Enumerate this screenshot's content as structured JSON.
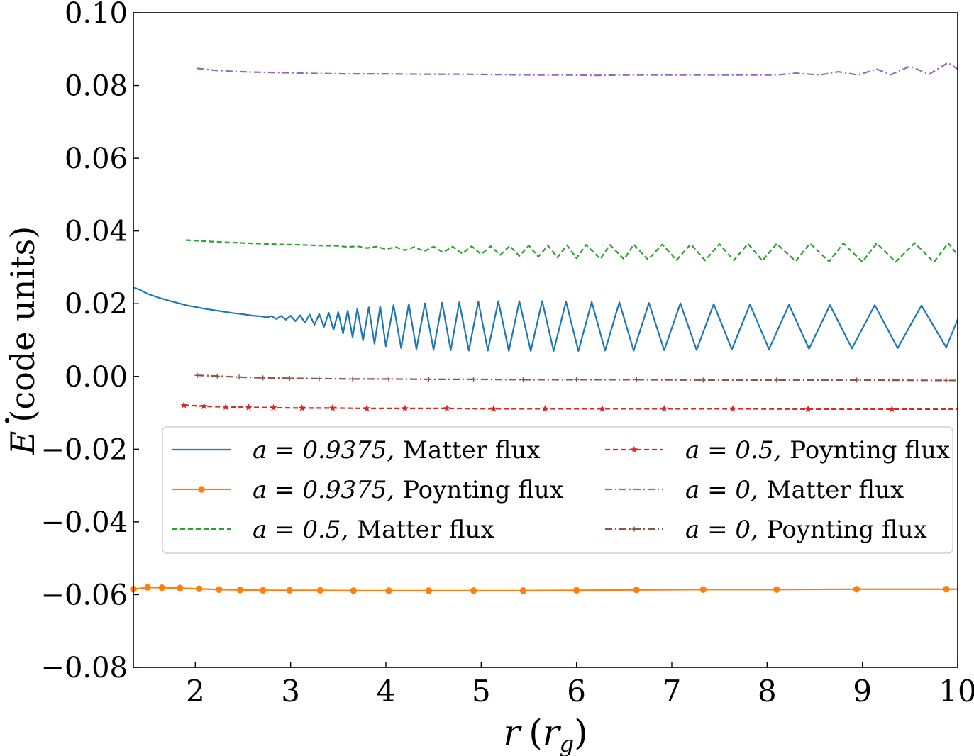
{
  "chart_data": {
    "type": "line",
    "title": "",
    "xlabel": "r (r_g)",
    "ylabel": "Ė (code units)",
    "xlabel_parts": {
      "var": "r",
      "open": "(",
      "sub_base": "r",
      "sub": "g",
      "close": ")"
    },
    "ylabel_parts": {
      "var": "E",
      "rest": "(code units)"
    },
    "xlim": [
      1.35,
      10
    ],
    "ylim": [
      -0.08,
      0.1
    ],
    "grid": false,
    "legend_placement": "center-right",
    "xticks": [
      2,
      3,
      4,
      5,
      6,
      7,
      8,
      9,
      10
    ],
    "xtick_labels": [
      "2",
      "3",
      "4",
      "5",
      "6",
      "7",
      "8",
      "9",
      "10"
    ],
    "yticks": [
      -0.08,
      -0.06,
      -0.04,
      -0.02,
      0.0,
      0.02,
      0.04,
      0.06,
      0.08,
      0.1
    ],
    "ytick_labels": [
      "−0.08",
      "−0.06",
      "−0.04",
      "−0.02",
      "0.00",
      "0.02",
      "0.04",
      "0.06",
      "0.08",
      "0.10"
    ],
    "series": [
      {
        "name": "a = 0.9375,  Matter flux",
        "legend_math": "a = 0.9375,",
        "legend_word": "Matter flux",
        "color": "#1f77b4",
        "dash": "solid",
        "marker": "none",
        "x": [
          1.35,
          1.42,
          1.5,
          1.6,
          1.7,
          1.8,
          1.9,
          2.0,
          2.1,
          2.2,
          2.3,
          2.4,
          2.5,
          2.6,
          2.7,
          2.75,
          2.8,
          2.85,
          2.9,
          2.95,
          3.0,
          3.05,
          3.1,
          3.15,
          3.2,
          3.25,
          3.3,
          3.35,
          3.4,
          3.45,
          3.5,
          3.55,
          3.6,
          3.65,
          3.7,
          3.76,
          3.82,
          3.88,
          3.94,
          4.0,
          4.08,
          4.16,
          4.24,
          4.32,
          4.41,
          4.5,
          4.59,
          4.68,
          4.77,
          4.87,
          4.97,
          5.07,
          5.18,
          5.29,
          5.4,
          5.52,
          5.64,
          5.76,
          5.89,
          6.02,
          6.16,
          6.3,
          6.45,
          6.6,
          6.76,
          6.92,
          7.09,
          7.26,
          7.44,
          7.63,
          7.82,
          8.02,
          8.23,
          8.44,
          8.66,
          8.89,
          9.13,
          9.37,
          9.62,
          9.88,
          10.0
        ],
        "values": [
          0.0245,
          0.0238,
          0.0227,
          0.0218,
          0.021,
          0.0203,
          0.0196,
          0.0191,
          0.0186,
          0.0182,
          0.0178,
          0.0174,
          0.0171,
          0.0167,
          0.0165,
          0.0162,
          0.0166,
          0.0158,
          0.0166,
          0.0156,
          0.0167,
          0.0152,
          0.0168,
          0.0148,
          0.017,
          0.0142,
          0.0172,
          0.0136,
          0.0175,
          0.0128,
          0.0177,
          0.0118,
          0.0181,
          0.0108,
          0.0186,
          0.0099,
          0.019,
          0.009,
          0.0193,
          0.0083,
          0.0196,
          0.0078,
          0.0199,
          0.0075,
          0.0201,
          0.0073,
          0.0203,
          0.0072,
          0.0204,
          0.0071,
          0.0206,
          0.0071,
          0.0207,
          0.007,
          0.0207,
          0.007,
          0.0207,
          0.007,
          0.0206,
          0.007,
          0.0205,
          0.0071,
          0.0204,
          0.0071,
          0.0202,
          0.0072,
          0.0201,
          0.0073,
          0.0199,
          0.0074,
          0.0198,
          0.0075,
          0.0197,
          0.0076,
          0.0196,
          0.0077,
          0.0196,
          0.0078,
          0.0195,
          0.008,
          0.0157
        ]
      },
      {
        "name": "a = 0.9375,  Poynting flux",
        "legend_math": "a = 0.9375,",
        "legend_word": "Poynting flux",
        "color": "#ff7f0e",
        "dash": "solid",
        "marker": "circle",
        "x": [
          1.35,
          1.5,
          1.65,
          1.84,
          2.04,
          2.25,
          2.47,
          2.71,
          2.99,
          3.31,
          3.66,
          4.03,
          4.45,
          4.92,
          5.44,
          6.0,
          6.63,
          7.33,
          8.1,
          8.94,
          9.88,
          10.0
        ],
        "values": [
          -0.0585,
          -0.058,
          -0.0581,
          -0.0582,
          -0.0584,
          -0.0586,
          -0.0587,
          -0.0588,
          -0.0588,
          -0.0588,
          -0.0589,
          -0.0589,
          -0.0589,
          -0.0589,
          -0.0589,
          -0.0588,
          -0.0587,
          -0.0586,
          -0.0586,
          -0.0585,
          -0.0585,
          -0.0585
        ]
      },
      {
        "name": "a = 0.5,  Matter flux",
        "legend_math": "a = 0.5,",
        "legend_word": "Matter flux",
        "color": "#2ca02c",
        "dash": "dashed",
        "marker": "none",
        "x": [
          1.9,
          2.1,
          2.3,
          2.5,
          2.7,
          2.9,
          3.1,
          3.3,
          3.5,
          3.6,
          3.7,
          3.8,
          3.9,
          4.0,
          4.1,
          4.2,
          4.3,
          4.4,
          4.5,
          4.6,
          4.7,
          4.8,
          4.9,
          5.0,
          5.1,
          5.2,
          5.3,
          5.4,
          5.5,
          5.6,
          5.7,
          5.8,
          5.9,
          6.0,
          6.1,
          6.25,
          6.35,
          6.5,
          6.6,
          6.75,
          6.9,
          7.05,
          7.2,
          7.35,
          7.5,
          7.65,
          7.8,
          7.95,
          8.1,
          8.3,
          8.45,
          8.65,
          8.8,
          9.0,
          9.15,
          9.35,
          9.55,
          9.75,
          9.9,
          10.0
        ],
        "values": [
          0.0375,
          0.0372,
          0.0369,
          0.0367,
          0.0365,
          0.0363,
          0.0362,
          0.036,
          0.0359,
          0.0356,
          0.0358,
          0.0353,
          0.0357,
          0.035,
          0.0356,
          0.0347,
          0.0356,
          0.0344,
          0.0357,
          0.0341,
          0.0357,
          0.0338,
          0.0358,
          0.0336,
          0.0358,
          0.0334,
          0.0359,
          0.0331,
          0.036,
          0.0329,
          0.036,
          0.0327,
          0.0361,
          0.0325,
          0.0362,
          0.0323,
          0.0362,
          0.0322,
          0.0363,
          0.0321,
          0.0363,
          0.032,
          0.0364,
          0.0319,
          0.0364,
          0.0319,
          0.0365,
          0.0318,
          0.0365,
          0.0317,
          0.0366,
          0.0316,
          0.0366,
          0.0315,
          0.0366,
          0.0315,
          0.0367,
          0.0314,
          0.0367,
          0.0334
        ]
      },
      {
        "name": "a = 0.5,  Poynting flux",
        "legend_math": "a = 0.5,",
        "legend_word": "Poynting flux",
        "color": "#d62728",
        "dash": "dashed",
        "marker": "star",
        "x": [
          1.88,
          2.09,
          2.32,
          2.56,
          2.82,
          3.12,
          3.44,
          3.8,
          4.2,
          4.64,
          5.13,
          5.67,
          6.27,
          6.92,
          7.64,
          8.43,
          9.31,
          10.0
        ],
        "values": [
          -0.0079,
          -0.0082,
          -0.0084,
          -0.0085,
          -0.0086,
          -0.0087,
          -0.0087,
          -0.0088,
          -0.0088,
          -0.0088,
          -0.0089,
          -0.0089,
          -0.0089,
          -0.0089,
          -0.0089,
          -0.009,
          -0.009,
          -0.009
        ]
      },
      {
        "name": "a = 0,  Matter flux",
        "legend_math": "a = 0,",
        "legend_word": "Matter flux",
        "color": "#9467bd",
        "dash": "dashdot",
        "marker": "none",
        "x": [
          2.02,
          2.2,
          2.4,
          2.6,
          2.8,
          3.0,
          3.3,
          3.6,
          4.0,
          4.4,
          4.8,
          5.2,
          5.6,
          5.9,
          6.2,
          6.5,
          6.8,
          7.1,
          7.4,
          7.8,
          8.1,
          8.3,
          8.55,
          8.75,
          8.95,
          9.15,
          9.3,
          9.5,
          9.7,
          9.9,
          10.0
        ],
        "values": [
          0.0847,
          0.0842,
          0.0839,
          0.0837,
          0.0836,
          0.0835,
          0.0833,
          0.0832,
          0.0832,
          0.0831,
          0.0831,
          0.083,
          0.0829,
          0.0829,
          0.0828,
          0.0829,
          0.0829,
          0.0829,
          0.0829,
          0.0829,
          0.0829,
          0.0834,
          0.0829,
          0.0838,
          0.0829,
          0.0845,
          0.083,
          0.0853,
          0.0831,
          0.0863,
          0.0845
        ]
      },
      {
        "name": "a = 0,  Poynting flux",
        "legend_math": "a = 0,",
        "legend_word": "Poynting flux",
        "color": "#8c564b",
        "dash": "dashdot",
        "marker": "plus",
        "x": [
          2.02,
          2.23,
          2.46,
          2.71,
          2.99,
          3.3,
          3.65,
          4.03,
          4.45,
          4.92,
          5.44,
          6.0,
          6.63,
          7.33,
          8.1,
          8.94,
          9.88,
          10.0
        ],
        "values": [
          0.0003,
          0.0001,
          -0.0002,
          -0.0004,
          -0.0005,
          -0.0006,
          -0.0007,
          -0.0007,
          -0.0008,
          -0.0008,
          -0.0009,
          -0.0009,
          -0.0009,
          -0.001,
          -0.001,
          -0.001,
          -0.0011,
          -0.0011
        ]
      }
    ]
  }
}
